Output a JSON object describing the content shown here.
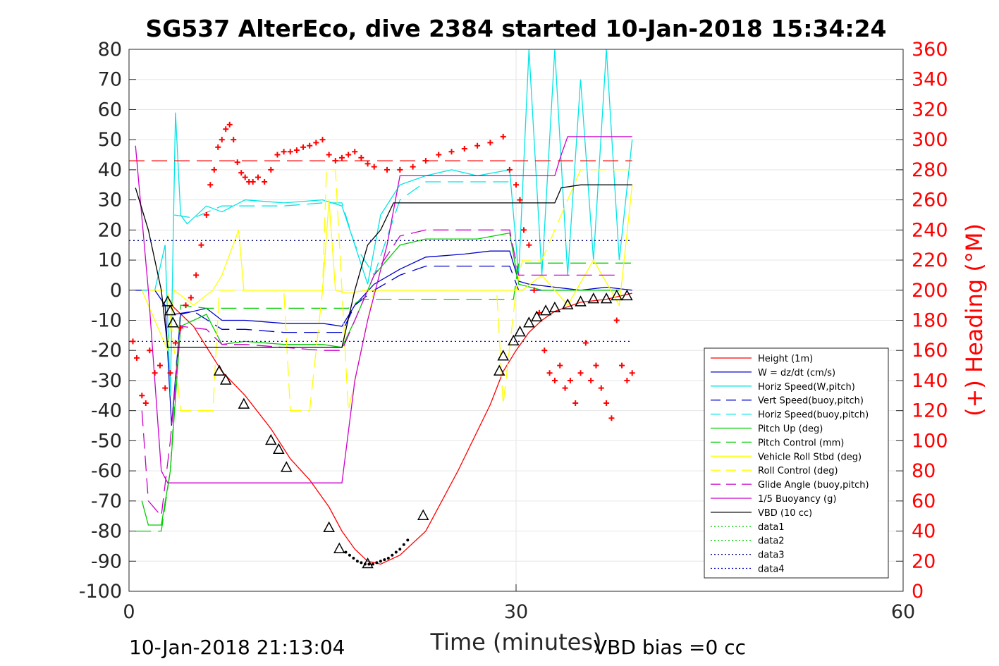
{
  "chart_data": {
    "type": "line",
    "title": "SG537 AlterEco, dive 2384 started 10-Jan-2018 15:34:24",
    "xlabel": "Time (minutes)",
    "ylabel_right": "(+) Heading (°M)",
    "xlim": [
      0,
      60
    ],
    "ylim": [
      -100,
      80
    ],
    "ylim_right": [
      0,
      360
    ],
    "xticks": [
      "0",
      "30",
      "60"
    ],
    "yticks": [
      "80",
      "70",
      "60",
      "50",
      "40",
      "30",
      "20",
      "10",
      "0",
      "-10",
      "-20",
      "-30",
      "-40",
      "-50",
      "-60",
      "-70",
      "-80",
      "-90",
      "-100"
    ],
    "yticks_right": [
      "360",
      "340",
      "320",
      "300",
      "280",
      "260",
      "240",
      "220",
      "200",
      "180",
      "160",
      "140",
      "120",
      "100",
      "80",
      "60",
      "40",
      "20",
      "0"
    ],
    "footer_left": "10-Jan-2018 21:13:04",
    "footer_right": "VBD bias =0 cc",
    "grid": true,
    "legend_position": "lower-right",
    "legend": [
      {
        "label": "Height (1m)",
        "color": "#ff0000",
        "style": "solid"
      },
      {
        "label": "W = dz/dt (cm/s)",
        "color": "#0000cc",
        "style": "solid"
      },
      {
        "label": "Horiz Speed(W,pitch)",
        "color": "#00e5e5",
        "style": "solid"
      },
      {
        "label": "Vert Speed(buoy,pitch)",
        "color": "#0000cc",
        "style": "dashed"
      },
      {
        "label": "Horiz Speed(buoy,pitch)",
        "color": "#00e5e5",
        "style": "dashed"
      },
      {
        "label": "Pitch Up (deg)",
        "color": "#00cc00",
        "style": "solid"
      },
      {
        "label": "Pitch Control (mm)",
        "color": "#00cc00",
        "style": "dashed"
      },
      {
        "label": "Vehicle Roll Stbd (deg)",
        "color": "#ffff00",
        "style": "solid"
      },
      {
        "label": "Roll Control (deg)",
        "color": "#ffff00",
        "style": "dashed"
      },
      {
        "label": "Glide Angle (buoy,pitch)",
        "color": "#cc00cc",
        "style": "dashed"
      },
      {
        "label": "1/5 Buoyancy (g)",
        "color": "#cc00cc",
        "style": "solid"
      },
      {
        "label": "VBD (10 cc)",
        "color": "#000000",
        "style": "solid"
      },
      {
        "label": "data1",
        "color": "#00cc00",
        "style": "dotted"
      },
      {
        "label": "data2",
        "color": "#00cc00",
        "style": "dotted"
      },
      {
        "label": "data3",
        "color": "#000080",
        "style": "dotted"
      },
      {
        "label": "data4",
        "color": "#0000cc",
        "style": "dotted"
      }
    ],
    "series": [
      {
        "name": "Height (1m)",
        "color": "#ff0000",
        "style": "solid",
        "x": [
          3.3,
          5,
          7.2,
          9,
          11,
          12.5,
          14,
          15.5,
          16.5,
          17.5,
          18.5,
          19.5,
          21,
          23,
          25.5,
          28,
          29,
          30,
          31,
          32,
          33,
          35,
          37,
          39
        ],
        "y": [
          -5,
          -12,
          -27,
          -35,
          -46,
          -56,
          -63,
          -72,
          -80,
          -86,
          -90,
          -91,
          -88,
          -80,
          -60,
          -38,
          -27,
          -20,
          -14,
          -10,
          -7,
          -4,
          -3,
          -1
        ]
      },
      {
        "name": "W = dz/dt (cm/s)",
        "color": "#0000cc",
        "style": "solid",
        "x": [
          0.5,
          2,
          2.8,
          3.3,
          4,
          6,
          7.2,
          9,
          12,
          15,
          16.5,
          17.5,
          19,
          21,
          23,
          26,
          28,
          29.5,
          30.2,
          31,
          33,
          35,
          37,
          39
        ],
        "y": [
          0,
          0,
          -5,
          -45,
          -8,
          -6,
          -10,
          -10,
          -11,
          -11,
          -12,
          -5,
          2,
          7,
          11,
          12,
          13,
          13,
          3,
          2,
          1,
          0,
          1,
          0
        ]
      },
      {
        "name": "Horiz Speed(W,pitch)",
        "color": "#00e5e5",
        "style": "solid",
        "x": [
          1,
          2,
          2.8,
          3.2,
          3.6,
          4,
          4.5,
          6,
          7.2,
          9,
          12,
          15,
          16.5,
          17.5,
          18.5,
          19.5,
          21,
          23,
          25,
          27,
          29.5,
          30.2,
          31,
          32,
          33,
          34,
          35,
          36,
          37,
          38,
          39
        ],
        "y": [
          0,
          0,
          15,
          -35,
          59,
          25,
          22,
          28,
          26,
          30,
          29,
          30,
          28,
          15,
          2,
          25,
          35,
          38,
          40,
          38,
          40,
          5,
          80,
          5,
          80,
          5,
          70,
          10,
          80,
          10,
          50
        ]
      },
      {
        "name": "Vert Speed(buoy,pitch)",
        "color": "#0000cc",
        "style": "dashed",
        "x": [
          3.5,
          5,
          7.2,
          9,
          12,
          15,
          16.5,
          17.5,
          19,
          21,
          23,
          25,
          27,
          29.5,
          30.2,
          32,
          35,
          38
        ],
        "y": [
          -8,
          -7,
          -13,
          -13,
          -14,
          -14,
          -14,
          -5,
          0,
          5,
          8,
          8,
          8,
          8,
          0,
          0,
          0,
          0
        ]
      },
      {
        "name": "Horiz Speed(buoy,pitch)",
        "color": "#00e5e5",
        "style": "dashed",
        "x": [
          3.5,
          5,
          7.2,
          9,
          12,
          15,
          16.5,
          17.5,
          19,
          21,
          23,
          25,
          27,
          29.5
        ],
        "y": [
          25,
          24,
          28,
          28,
          28,
          29,
          29,
          15,
          5,
          30,
          36,
          36,
          36,
          36
        ]
      },
      {
        "name": "Pitch Up (deg)",
        "color": "#00cc00",
        "style": "solid",
        "x": [
          1,
          1.5,
          2.5,
          3.2,
          4,
          6,
          7.2,
          9,
          12,
          15,
          16.5,
          17.5,
          19,
          21,
          23,
          25,
          27,
          29.5,
          30.2,
          32,
          35,
          38
        ],
        "y": [
          -70,
          -78,
          -78,
          -60,
          -12,
          -8,
          -18,
          -17,
          -18,
          -18,
          -19,
          -10,
          5,
          15,
          17,
          17,
          17,
          19,
          2,
          0,
          0,
          0
        ]
      },
      {
        "name": "Pitch Control (mm)",
        "color": "#00cc00",
        "style": "dashed",
        "x": [
          0.5,
          2.5,
          3.2,
          4,
          6,
          8,
          11,
          14,
          17,
          18,
          19,
          22,
          25,
          28,
          29.8,
          30.2,
          32,
          35,
          39
        ],
        "y": [
          -80,
          -80,
          -60,
          -5,
          -6,
          -6,
          -6,
          -6,
          -6,
          -3,
          -3,
          -3,
          -3,
          -3,
          -3,
          9,
          9,
          9,
          9
        ]
      },
      {
        "name": "Vehicle Roll Stbd (deg)",
        "color": "#ffff00",
        "style": "solid",
        "x": [
          1,
          2,
          3,
          3.5,
          5,
          6.5,
          7.2,
          8.5,
          8.9,
          9.2,
          10,
          12,
          14,
          15,
          15.5,
          16,
          17,
          18.5,
          21,
          24,
          27,
          29.5,
          30.5,
          32,
          34,
          36,
          38,
          39
        ],
        "y": [
          0,
          -10,
          -20,
          0,
          -5,
          0,
          5,
          20,
          0,
          0,
          0,
          0,
          0,
          0,
          30,
          0,
          -1,
          0,
          0,
          0,
          0,
          0,
          0,
          5,
          -5,
          10,
          -5,
          35
        ]
      },
      {
        "name": "Roll Control (deg)",
        "color": "#ffff00",
        "style": "dashed",
        "x": [
          1.5,
          3,
          4,
          6.5,
          7,
          9,
          9.3,
          12,
          12.5,
          14,
          15,
          15.3,
          16,
          16.5,
          17,
          19,
          22,
          25,
          28.5,
          29,
          30,
          30.5,
          32,
          35,
          38,
          39
        ],
        "y": [
          0,
          0,
          -40,
          -40,
          0,
          0,
          0,
          0,
          -40,
          -40,
          0,
          40,
          40,
          0,
          -40,
          0,
          0,
          0,
          0,
          -38,
          0,
          10,
          10,
          40,
          40,
          40
        ]
      },
      {
        "name": "Glide Angle (buoy,pitch)",
        "color": "#cc00cc",
        "style": "dashed",
        "x": [
          1,
          1.5,
          2.5,
          3.2,
          4,
          6,
          7.2,
          9,
          12,
          15,
          16.5,
          17.5,
          19,
          21,
          23,
          25,
          27,
          29.5,
          30.2,
          32,
          35,
          38
        ],
        "y": [
          -40,
          -70,
          -75,
          -50,
          -12,
          -13,
          -18,
          -18,
          -19,
          -20,
          -20,
          -10,
          5,
          18,
          20,
          20,
          20,
          20,
          5,
          5,
          5,
          5
        ]
      },
      {
        "name": "1/5 Buoyancy (g)",
        "color": "#cc00cc",
        "style": "solid",
        "x": [
          0.5,
          1.5,
          2.5,
          3.0,
          4,
          8,
          12,
          16.5,
          17.5,
          18.5,
          20,
          21,
          24,
          27,
          29,
          30.2,
          32,
          33,
          33.5,
          34,
          35,
          37,
          39
        ],
        "y": [
          48,
          0,
          -60,
          -64,
          -64,
          -64,
          -64,
          -64,
          -30,
          -10,
          15,
          38,
          38,
          38,
          38,
          38,
          38,
          38,
          45,
          51,
          51,
          51,
          51
        ]
      },
      {
        "name": "VBD (10 cc)",
        "color": "#000000",
        "style": "solid",
        "x": [
          0.5,
          1.5,
          2.5,
          3.0,
          4,
          8,
          12,
          16.5,
          17.5,
          18.5,
          19.5,
          20.5,
          21.5,
          30.2,
          32,
          33,
          33.5,
          35,
          37,
          39
        ],
        "y": [
          34,
          20,
          0,
          -19,
          -19,
          -19,
          -19,
          -19,
          0,
          15,
          20,
          29,
          29,
          29,
          29,
          29,
          34,
          35,
          35,
          35
        ]
      },
      {
        "name": "data3",
        "color": "#000080",
        "style": "dotted",
        "x": [
          0,
          39
        ],
        "y": [
          16.5,
          16.5
        ]
      },
      {
        "name": "data4",
        "color": "#0000cc",
        "style": "dotted",
        "x": [
          0,
          39
        ],
        "y": [
          -17,
          -17
        ]
      },
      {
        "name": "Heading mean",
        "color": "#ff0000",
        "style": "dashed",
        "x": [
          0,
          39
        ],
        "y": [
          43,
          43
        ]
      },
      {
        "name": "Heading",
        "color": "#ff0000",
        "style": "plus",
        "axis": "right",
        "x": [
          0.3,
          0.6,
          1.0,
          1.3,
          1.6,
          2.0,
          2.4,
          2.8,
          3.2,
          3.6,
          4.0,
          4.4,
          4.8,
          5.2,
          5.6,
          6.0,
          6.3,
          6.6,
          6.9,
          7.2,
          7.5,
          7.8,
          8.1,
          8.4,
          8.7,
          9.0,
          9.3,
          9.6,
          10,
          10.5,
          11,
          11.5,
          12,
          12.5,
          13,
          13.5,
          14,
          14.5,
          15,
          15.5,
          16,
          16.5,
          17,
          17.5,
          18,
          18.5,
          19,
          20,
          21,
          22,
          23,
          24,
          25,
          26,
          27,
          28,
          29,
          29.5,
          30,
          30.3,
          30.6,
          31,
          31.4,
          31.8,
          32.2,
          32.6,
          33,
          33.4,
          33.8,
          34.2,
          34.6,
          35,
          35.4,
          35.8,
          36.2,
          36.6,
          37,
          37.4,
          37.8,
          38.2,
          38.6,
          39
        ],
        "y": [
          166,
          155,
          130,
          125,
          160,
          145,
          150,
          135,
          145,
          165,
          175,
          190,
          195,
          210,
          230,
          250,
          270,
          280,
          295,
          300,
          307,
          310,
          300,
          285,
          278,
          275,
          272,
          272,
          275,
          272,
          280,
          290,
          292,
          292,
          293,
          295,
          296,
          298,
          300,
          290,
          286,
          288,
          290,
          292,
          288,
          284,
          282,
          280,
          280,
          282,
          286,
          290,
          292,
          294,
          296,
          298,
          302,
          280,
          270,
          260,
          240,
          230,
          200,
          185,
          160,
          145,
          140,
          150,
          135,
          140,
          125,
          145,
          165,
          140,
          150,
          135,
          125,
          115,
          180,
          150,
          140,
          145
        ]
      },
      {
        "name": "Markers (triangles)",
        "color": "#000000",
        "style": "triangle",
        "x": [
          3.0,
          3.2,
          3.4,
          7.0,
          7.5,
          8.9,
          11.0,
          11.6,
          12.2,
          15.5,
          16.3,
          18.5,
          22.8,
          28.7,
          29.0,
          29.8,
          30.3,
          31.0,
          31.6,
          32.3,
          33.0,
          34.0,
          35.0,
          36.0,
          37.0,
          37.8,
          38.6
        ],
        "y": [
          -4,
          -7,
          -11,
          -27,
          -30,
          -38,
          -50,
          -53,
          -59,
          -79,
          -86,
          -91,
          -75,
          -27,
          -22,
          -17,
          -14,
          -11,
          -9,
          -7,
          -6,
          -5,
          -4,
          -3,
          -3,
          -2,
          -2
        ]
      },
      {
        "name": "Markers (dots)",
        "color": "#000000",
        "style": "dot",
        "x": [
          16.8,
          17.1,
          17.4,
          17.7,
          18.0,
          18.3,
          18.6,
          18.9,
          19.2,
          19.5,
          19.8,
          20.1,
          20.4,
          20.7,
          21.0,
          21.3,
          21.6
        ],
        "y": [
          -87,
          -88,
          -89,
          -90,
          -90.5,
          -91,
          -91,
          -91,
          -90.5,
          -90,
          -89.5,
          -89,
          -88,
          -87,
          -86,
          -84.5,
          -83
        ]
      }
    ]
  }
}
